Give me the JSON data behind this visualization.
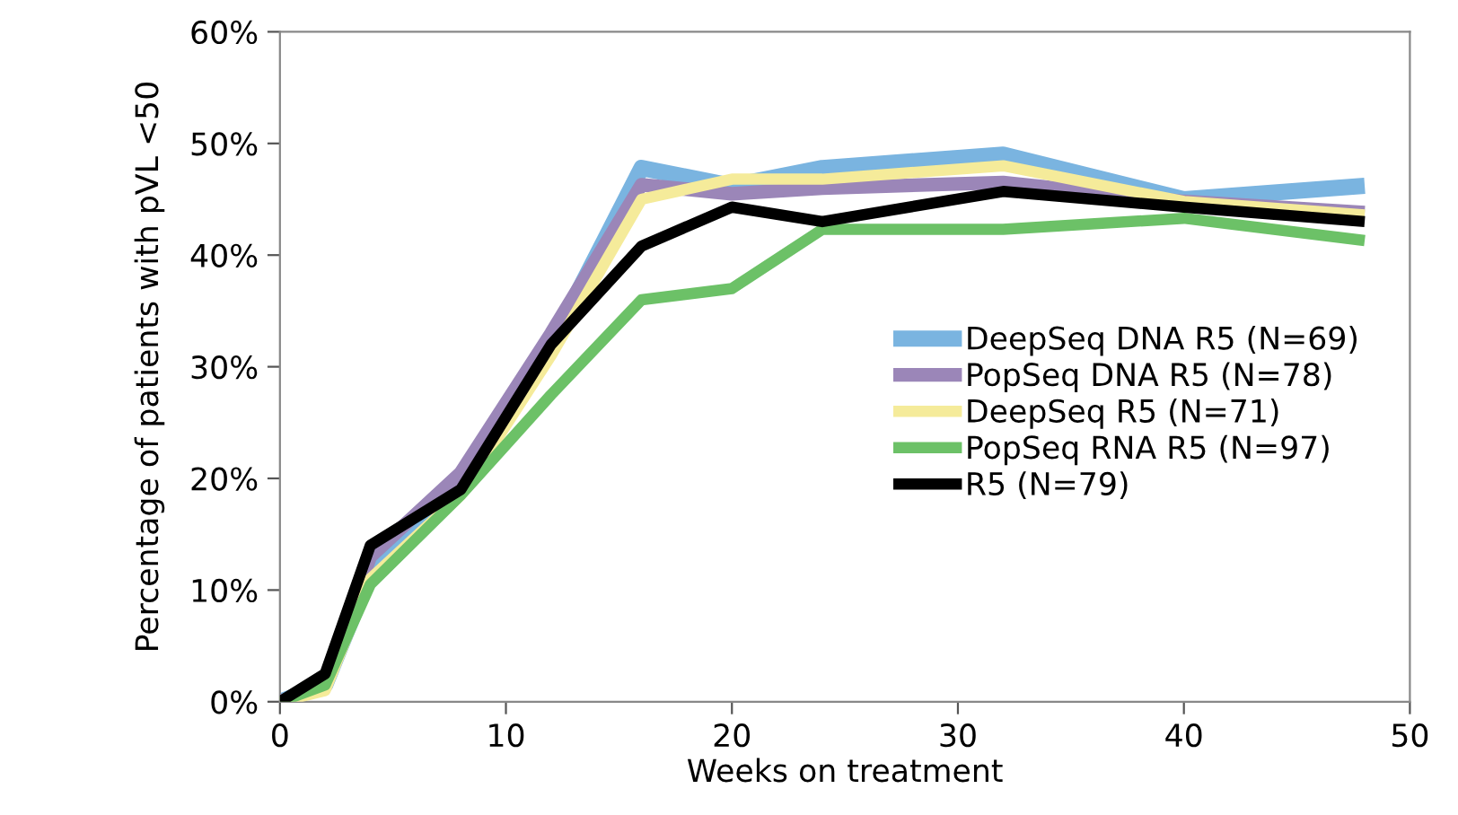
{
  "chart_data": {
    "type": "line",
    "xlabel": "Weeks on treatment",
    "ylabel": "Percentage of patients with pVL <50",
    "x": [
      0,
      2,
      4,
      8,
      12,
      16,
      20,
      24,
      32,
      40,
      48
    ],
    "series": [
      {
        "name": "DeepSeq DNA R5 (N=69)",
        "color": "#7ab4e0",
        "values": [
          0,
          1.5,
          11.5,
          19.5,
          32,
          47.8,
          46.2,
          47.8,
          49,
          45,
          46.2
        ]
      },
      {
        "name": "PopSeq DNA R5 (N=78)",
        "color": "#9b86b8",
        "values": [
          0,
          1.5,
          13,
          20.5,
          33,
          46.3,
          45.5,
          46,
          46.5,
          44.8,
          43.8
        ]
      },
      {
        "name": "DeepSeq R5 (N=71)",
        "color": "#f5eb9a",
        "values": [
          0,
          1,
          11,
          18.5,
          31,
          45,
          46.8,
          46.8,
          48,
          44.8,
          43.6
        ]
      },
      {
        "name": "PopSeq RNA R5 (N=97)",
        "color": "#6cc167",
        "values": [
          0,
          1.5,
          10.5,
          18.5,
          27.5,
          36,
          37,
          42.3,
          42.3,
          43.3,
          41.3
        ]
      },
      {
        "name": "R5 (N=79)",
        "color": "#000000",
        "values": [
          0,
          2.5,
          14,
          19,
          32,
          40.8,
          44.3,
          43,
          45.7,
          44.3,
          43
        ]
      }
    ],
    "xlim": [
      0,
      50
    ],
    "xticks": [
      0,
      10,
      20,
      30,
      40,
      50
    ],
    "ylim": [
      0,
      60
    ],
    "yticks": [
      {
        "value": 0,
        "label": "0%"
      },
      {
        "value": 10,
        "label": "10%"
      },
      {
        "value": 20,
        "label": "20%"
      },
      {
        "value": 30,
        "label": "30%"
      },
      {
        "value": 40,
        "label": "40%"
      },
      {
        "value": 50,
        "label": "50%"
      },
      {
        "value": 60,
        "label": "60%"
      }
    ],
    "grid": false,
    "legend": "right",
    "marker": "none",
    "line_style": "solid"
  }
}
